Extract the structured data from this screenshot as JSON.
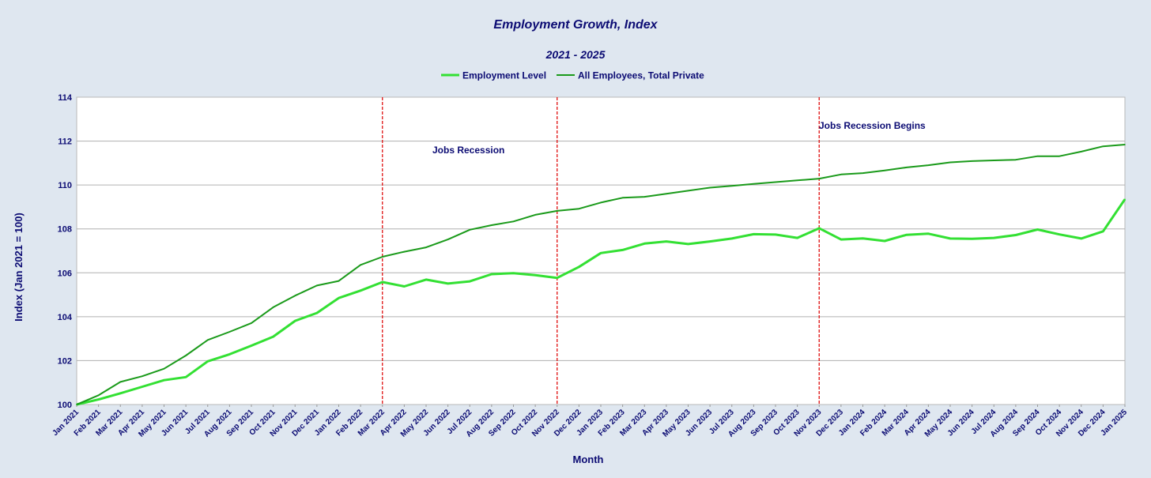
{
  "chart_data": {
    "type": "line",
    "title": "Employment Growth, Index",
    "subtitle": "2021 - 2025",
    "xlabel": "Month",
    "ylabel": "Index (Jan 2021 = 100)",
    "ylim": [
      100,
      114
    ],
    "yticks": [
      100,
      102,
      104,
      106,
      108,
      110,
      112,
      114
    ],
    "grid": true,
    "legend_position": "top-center",
    "categories": [
      "Jan 2021",
      "Feb 2021",
      "Mar 2021",
      "Apr 2021",
      "May 2021",
      "Jun 2021",
      "Jul 2021",
      "Aug 2021",
      "Sep 2021",
      "Oct 2021",
      "Nov 2021",
      "Dec 2021",
      "Jan 2022",
      "Feb 2022",
      "Mar 2022",
      "Apr 2022",
      "May 2022",
      "Jun 2022",
      "Jul 2022",
      "Aug 2022",
      "Sep 2022",
      "Oct 2022",
      "Nov 2022",
      "Dec 2022",
      "Jan 2023",
      "Feb 2023",
      "Mar 2023",
      "Apr 2023",
      "May 2023",
      "Jun 2023",
      "Jul 2023",
      "Aug 2023",
      "Sep 2023",
      "Oct 2023",
      "Nov 2023",
      "Dec 2023",
      "Jan 2024",
      "Feb 2024",
      "Mar 2024",
      "Apr 2024",
      "May 2024",
      "Jun 2024",
      "Jul 2024",
      "Aug 2024",
      "Sep 2024",
      "Oct 2024",
      "Nov 2024",
      "Dec 2024",
      "Jan 2025"
    ],
    "series": [
      {
        "name": "Employment Level",
        "color": "#33e033",
        "values": [
          100.0,
          100.23,
          100.51,
          100.81,
          101.11,
          101.25,
          101.97,
          102.29,
          102.68,
          103.09,
          103.81,
          104.17,
          104.85,
          105.19,
          105.58,
          105.38,
          105.69,
          105.51,
          105.61,
          105.94,
          105.98,
          105.89,
          105.77,
          106.27,
          106.9,
          107.04,
          107.33,
          107.43,
          107.31,
          107.43,
          107.56,
          107.76,
          107.74,
          107.59,
          108.03,
          107.52,
          107.57,
          107.45,
          107.73,
          107.78,
          107.56,
          107.55,
          107.59,
          107.72,
          107.97,
          107.75,
          107.56,
          107.89,
          109.35
        ]
      },
      {
        "name": "All Employees, Total Private",
        "color": "#1a9a1a",
        "values": [
          100.0,
          100.42,
          101.03,
          101.29,
          101.63,
          102.23,
          102.94,
          103.31,
          103.71,
          104.43,
          104.96,
          105.42,
          105.63,
          106.36,
          106.73,
          106.96,
          107.16,
          107.52,
          107.96,
          108.17,
          108.34,
          108.64,
          108.82,
          108.92,
          109.2,
          109.42,
          109.46,
          109.6,
          109.74,
          109.88,
          109.96,
          110.05,
          110.13,
          110.21,
          110.29,
          110.48,
          110.54,
          110.66,
          110.8,
          110.9,
          111.03,
          111.09,
          111.12,
          111.15,
          111.31,
          111.31,
          111.52,
          111.76,
          111.84
        ]
      }
    ],
    "vertical_lines": [
      {
        "at": "Mar 2022",
        "color": "#e01010",
        "style": "dashed"
      },
      {
        "at": "Nov 2022",
        "color": "#e01010",
        "style": "dashed"
      },
      {
        "at": "Nov 2023",
        "color": "#e01010",
        "style": "dashed"
      }
    ],
    "annotations": [
      {
        "text": "Jobs Recession",
        "near": "Mar 2022 - Nov 2022"
      },
      {
        "text": "Jobs Recession Begins",
        "near": "Nov 2023"
      }
    ]
  }
}
